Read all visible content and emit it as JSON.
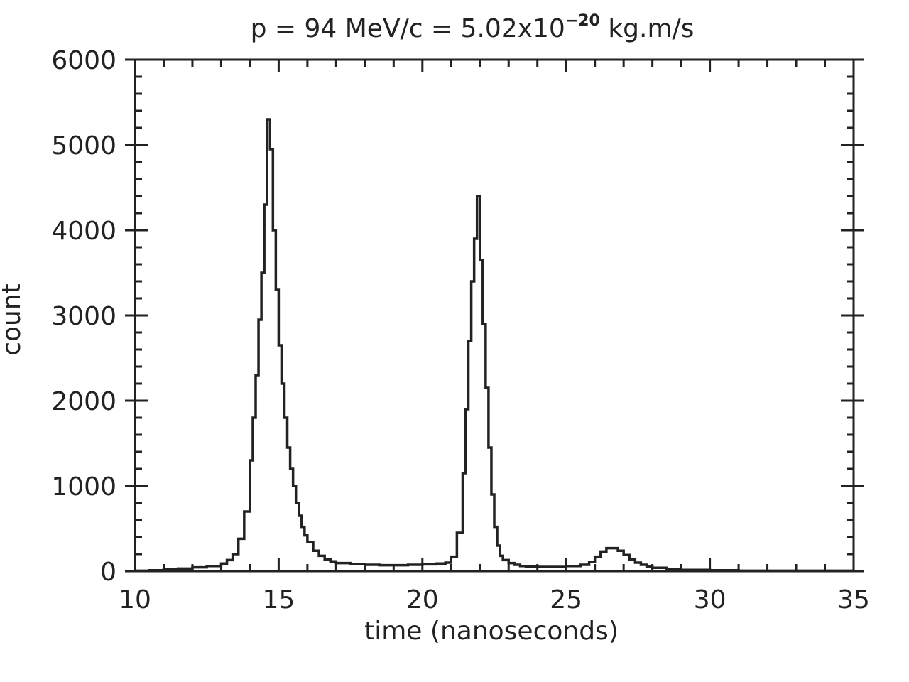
{
  "chart_data": {
    "type": "line",
    "style": "histogram-step",
    "title": {
      "prefix": "p  =  94  MeV/c  =  5.02x10",
      "exponent": "−20",
      "suffix": " kg.m/s"
    },
    "xlabel": "time  (nanoseconds)",
    "ylabel": "count",
    "xlim": [
      10,
      35
    ],
    "ylim": [
      0,
      6000
    ],
    "xticks": [
      "10",
      "15",
      "20",
      "25",
      "30",
      "35"
    ],
    "yticks": [
      "0",
      "1000",
      "2000",
      "3000",
      "4000",
      "5000",
      "6000"
    ],
    "grid": false,
    "line_color": "#222222",
    "series": [
      {
        "x": [
          10,
          10.5,
          11,
          11.5,
          12,
          12.5,
          13,
          13.2,
          13.4,
          13.6,
          13.8,
          14.0,
          14.1,
          14.2,
          14.3,
          14.4,
          14.5,
          14.6,
          14.7,
          14.8,
          14.9,
          15.0,
          15.1,
          15.2,
          15.3,
          15.4,
          15.5,
          15.6,
          15.7,
          15.8,
          15.9,
          16.0,
          16.2,
          16.4,
          16.6,
          16.8,
          17.0,
          17.5,
          18,
          18.5,
          19,
          19.5,
          20,
          20.5,
          20.8,
          21.0,
          21.2,
          21.4,
          21.5,
          21.6,
          21.7,
          21.8,
          21.9,
          22.0,
          22.1,
          22.2,
          22.3,
          22.4,
          22.5,
          22.6,
          22.7,
          22.8,
          23.0,
          23.2,
          23.4,
          23.6,
          24.0,
          24.5,
          25.0,
          25.5,
          25.8,
          26.0,
          26.2,
          26.4,
          26.6,
          26.8,
          27.0,
          27.2,
          27.4,
          27.6,
          27.8,
          28.0,
          28.5,
          29,
          30,
          31,
          32,
          33,
          34,
          35
        ],
        "y": [
          5,
          10,
          20,
          30,
          45,
          60,
          90,
          130,
          200,
          380,
          700,
          1300,
          1800,
          2300,
          2950,
          3500,
          4300,
          5300,
          4950,
          4000,
          3300,
          2650,
          2200,
          1800,
          1450,
          1200,
          1000,
          800,
          650,
          520,
          420,
          340,
          240,
          180,
          140,
          115,
          95,
          85,
          75,
          70,
          70,
          75,
          80,
          90,
          100,
          170,
          450,
          1150,
          1900,
          2700,
          3400,
          3900,
          4400,
          3650,
          2900,
          2150,
          1450,
          900,
          520,
          300,
          180,
          130,
          95,
          75,
          60,
          55,
          50,
          50,
          60,
          75,
          110,
          170,
          230,
          270,
          270,
          240,
          190,
          140,
          100,
          75,
          55,
          40,
          25,
          15,
          10,
          5,
          5,
          5,
          5,
          5
        ]
      }
    ]
  }
}
